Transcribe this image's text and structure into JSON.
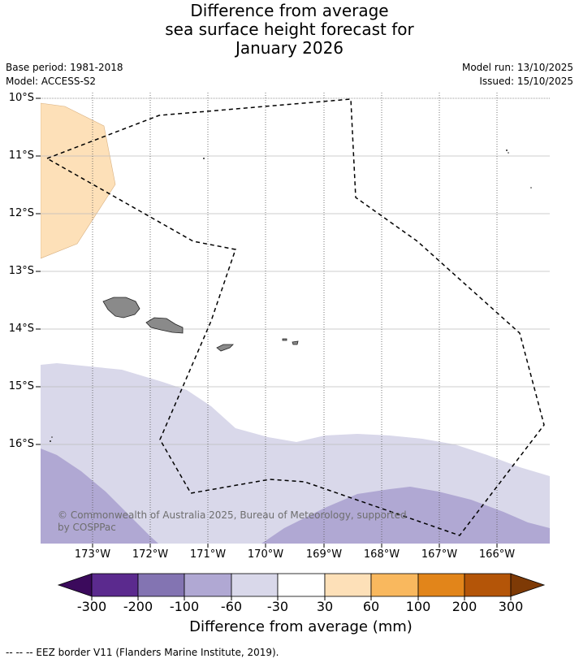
{
  "title": {
    "line1": "Difference from average",
    "line2": "sea surface height forecast for",
    "line3": "January 2026"
  },
  "meta": {
    "base_period": "Base period: 1981-2018",
    "model": "Model: ACCESS-S2",
    "model_run": "Model run: 13/10/2025",
    "issued": "Issued: 15/10/2025"
  },
  "map": {
    "lat_labels": [
      "10°S",
      "11°S",
      "12°S",
      "13°S",
      "14°S",
      "15°S",
      "16°S"
    ],
    "lon_labels": [
      "173°W",
      "172°W",
      "171°W",
      "170°W",
      "169°W",
      "168°W",
      "167°W",
      "166°W"
    ],
    "copyright_line1": "© Commonwealth of Australia 2025, Bureau of Meteorology, supported",
    "copyright_line2": "by COSPPac"
  },
  "colorbar": {
    "ticks": [
      "-300",
      "-200",
      "-100",
      "-60",
      "-30",
      "30",
      "60",
      "100",
      "200",
      "300"
    ],
    "colors": [
      "#3b0a5c",
      "#5b2a8e",
      "#8374b2",
      "#b0a8d3",
      "#d9d8ea",
      "#ffffff",
      "#fde0b8",
      "#f9b85e",
      "#e2851a",
      "#b45508",
      "#7e3a06"
    ],
    "label": "Difference from average (mm)"
  },
  "footer": "--  --  -- EEZ border V11 (Flanders Marine Institute, 2019)."
}
